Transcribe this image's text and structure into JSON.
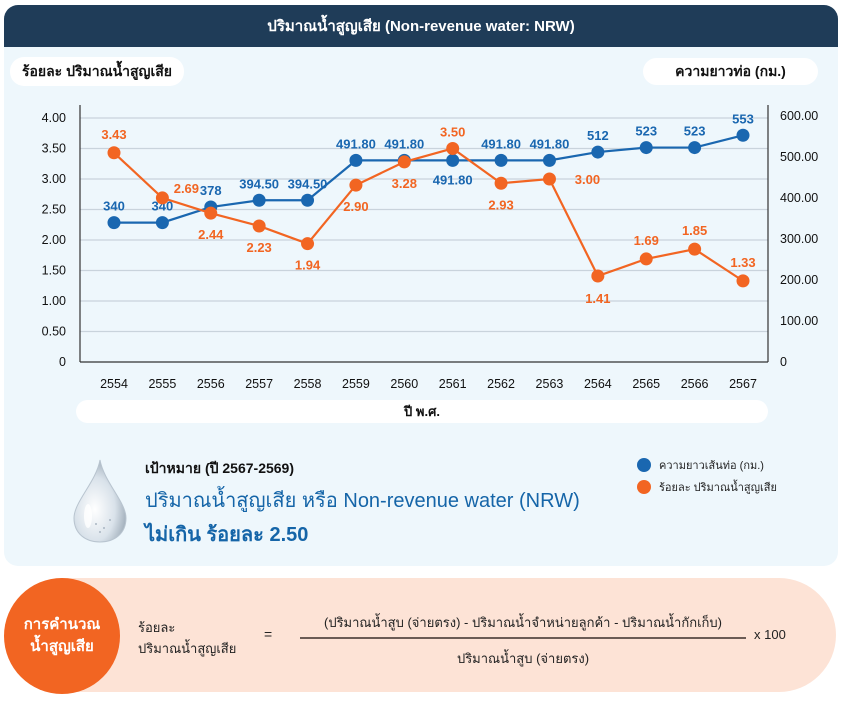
{
  "header": {
    "title": "ปริมาณน้ำสูญเสีย (Non-revenue water: NRW)"
  },
  "colors": {
    "header_bg": "#1f3c58",
    "panel_bg": "#eef7fc",
    "blue": "#1a67b0",
    "orange": "#f26522",
    "formula_bg": "#fde3d6"
  },
  "chart_data": {
    "type": "line",
    "title": "ปริมาณน้ำสูญเสีย (Non-revenue water: NRW)",
    "xlabel": "ปี พ.ศ.",
    "ylabel_left": "ร้อยละ ปริมาณน้ำสูญเสีย",
    "ylabel_right": "ความยาวท่อ (กม.)",
    "categories": [
      "2554",
      "2555",
      "2556",
      "2557",
      "2558",
      "2559",
      "2560",
      "2561",
      "2562",
      "2563",
      "2564",
      "2565",
      "2566",
      "2567"
    ],
    "ylim_left": [
      0,
      4
    ],
    "ylim_right": [
      0,
      600
    ],
    "left_ticks": [
      "0",
      "0.50",
      "1.00",
      "1.50",
      "2.00",
      "2.50",
      "3.00",
      "3.50",
      "4.00"
    ],
    "right_ticks": [
      "0",
      "100.00",
      "200.00",
      "300.00",
      "400.00",
      "500.00",
      "600.00"
    ],
    "grid": true,
    "legend_position": "bottom-right",
    "series": [
      {
        "name": "ความยาวเส้นท่อ (กม.)",
        "axis": "right",
        "color": "#1a67b0",
        "values": [
          340,
          340,
          378,
          394.5,
          394.5,
          491.8,
          491.8,
          491.8,
          491.8,
          491.8,
          512,
          523,
          523,
          553
        ],
        "labels": [
          "340",
          "340",
          "378",
          "394.50",
          "394.50",
          "491.80",
          "491.80",
          "491.80",
          "491.80",
          "491.80",
          "512",
          "523",
          "523",
          "553"
        ]
      },
      {
        "name": "ร้อยละ ปริมาณน้ำสูญเสีย",
        "axis": "left",
        "color": "#f26522",
        "values": [
          3.43,
          2.69,
          2.44,
          2.23,
          1.94,
          2.9,
          3.28,
          3.5,
          2.93,
          3.0,
          1.41,
          1.69,
          1.85,
          1.33
        ],
        "labels": [
          "3.43",
          "2.69",
          "2.44",
          "2.23",
          "1.94",
          "2.90",
          "3.28",
          "3.50",
          "2.93",
          "3.00",
          "1.41",
          "1.69",
          "1.85",
          "1.33"
        ]
      }
    ]
  },
  "target": {
    "heading": "เป้าหมาย (ปี 2567-2569)",
    "line1": "ปริมาณน้ำสูญเสีย หรือ Non-revenue water (NRW)",
    "line2": "ไม่เกิน ร้อยละ 2.50"
  },
  "legend": {
    "items": [
      {
        "label": "ความยาวเส้นท่อ (กม.)",
        "color": "#1a67b0"
      },
      {
        "label": "ร้อยละ ปริมาณน้ำสูญเสีย",
        "color": "#f26522"
      }
    ]
  },
  "formula": {
    "badge_line1": "การคำนวณ",
    "badge_line2": "น้ำสูญเสีย",
    "lhs_line1": "ร้อยละ",
    "lhs_line2": "ปริมาณน้ำสูญเสีย",
    "equals": "=",
    "numerator": "(ปริมาณน้ำสูบ (จ่ายตรง) - ปริมาณน้ำจำหน่ายลูกค้า - ปริมาณน้ำกักเก็บ)",
    "denominator": "ปริมาณน้ำสูบ (จ่ายตรง)",
    "multiplier": "x 100"
  }
}
